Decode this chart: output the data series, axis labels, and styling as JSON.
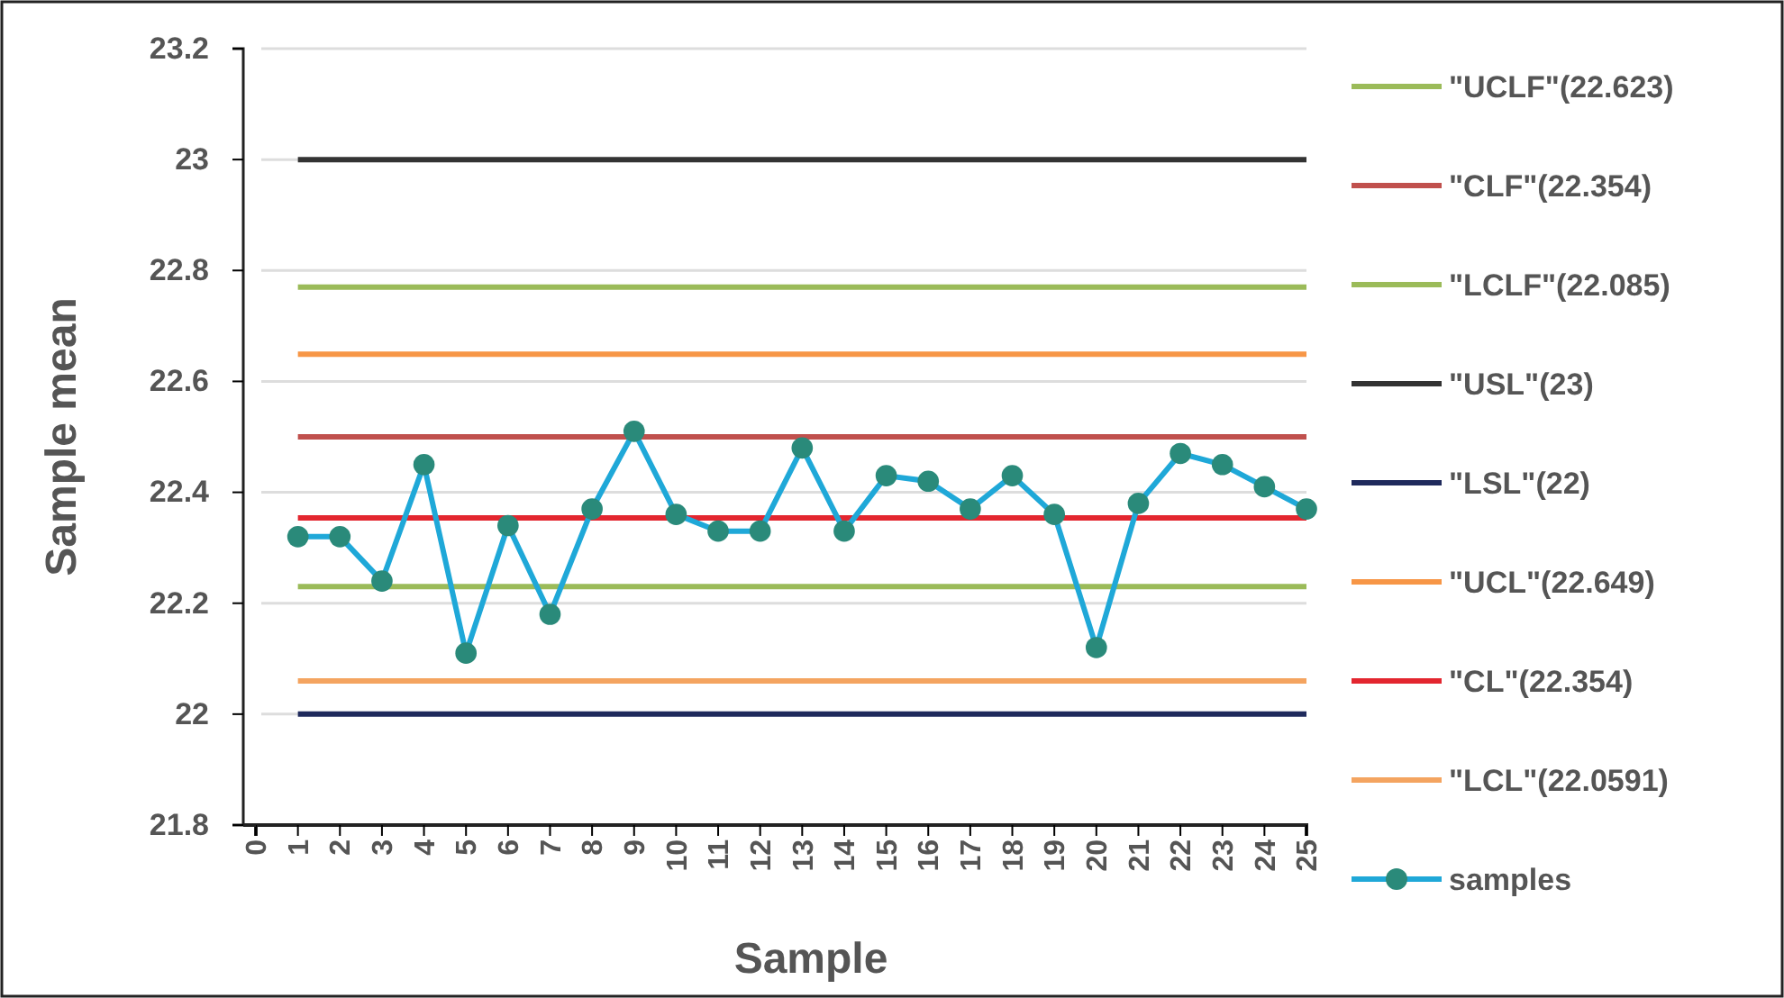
{
  "chart_data": {
    "type": "line",
    "xlabel": "Sample",
    "ylabel": "Sample mean",
    "xlim": [
      0,
      25
    ],
    "xticks": [
      0,
      1,
      2,
      3,
      4,
      5,
      6,
      7,
      8,
      9,
      10,
      11,
      12,
      13,
      14,
      15,
      16,
      17,
      18,
      19,
      20,
      21,
      22,
      23,
      24,
      25
    ],
    "ylim": [
      21.8,
      23.2
    ],
    "yticks": [
      21.8,
      22,
      22.2,
      22.4,
      22.6,
      22.8,
      23,
      23.2
    ],
    "grid": "y",
    "legend": "right",
    "series": [
      {
        "name": "\"UCLF\"(22.623)",
        "color": "#9bbb59",
        "x": [
          1,
          25
        ],
        "values": [
          22.77,
          22.77
        ],
        "marker": "none"
      },
      {
        "name": "\"CLF\"(22.354)",
        "color": "#c0504d",
        "x": [
          1,
          25
        ],
        "values": [
          22.5,
          22.5
        ],
        "marker": "none"
      },
      {
        "name": "\"LCLF\"(22.085)",
        "color": "#9bbb59",
        "x": [
          1,
          25
        ],
        "values": [
          22.23,
          22.23
        ],
        "marker": "none"
      },
      {
        "name": "\"USL\"(23)",
        "color": "#333333",
        "x": [
          1,
          25
        ],
        "values": [
          23,
          23
        ],
        "marker": "none"
      },
      {
        "name": "\"LSL\"(22)",
        "color": "#1f2a5c",
        "x": [
          1,
          25
        ],
        "values": [
          22,
          22
        ],
        "marker": "none"
      },
      {
        "name": "\"UCL\"(22.649)",
        "color": "#f79646",
        "x": [
          1,
          25
        ],
        "values": [
          22.649,
          22.649
        ],
        "marker": "none"
      },
      {
        "name": "\"CL\"(22.354)",
        "color": "#e3262f",
        "x": [
          1,
          25
        ],
        "values": [
          22.354,
          22.354
        ],
        "marker": "none"
      },
      {
        "name": "\"LCL\"(22.0591)",
        "color": "#f4a460",
        "x": [
          1,
          25
        ],
        "values": [
          22.06,
          22.06
        ],
        "marker": "none"
      },
      {
        "name": "samples",
        "color": "#1fa8d8",
        "x": [
          1,
          2,
          3,
          4,
          5,
          6,
          7,
          8,
          9,
          10,
          11,
          12,
          13,
          14,
          15,
          16,
          17,
          18,
          19,
          20,
          21,
          22,
          23,
          24,
          25
        ],
        "values": [
          22.32,
          22.32,
          22.24,
          22.45,
          22.11,
          22.34,
          22.18,
          22.37,
          22.51,
          22.36,
          22.33,
          22.33,
          22.48,
          22.33,
          22.43,
          22.42,
          22.37,
          22.43,
          22.36,
          22.12,
          22.38,
          22.47,
          22.45,
          22.41,
          22.37
        ],
        "marker": "circle"
      }
    ]
  }
}
